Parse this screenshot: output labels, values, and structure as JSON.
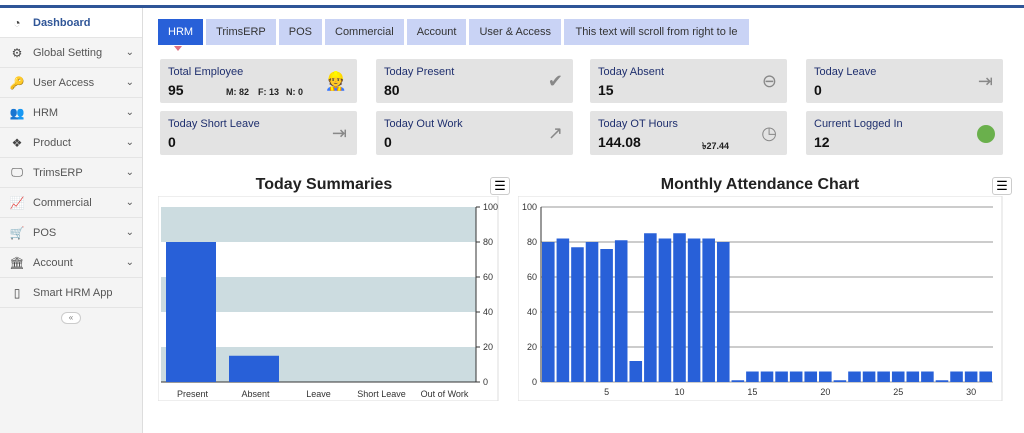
{
  "sidebar": {
    "items": [
      {
        "label": "Dashboard",
        "icon": "dashboard-icon",
        "active": true
      },
      {
        "label": "Global Setting",
        "icon": "gear-icon"
      },
      {
        "label": "User Access",
        "icon": "key-icon"
      },
      {
        "label": "HRM",
        "icon": "users-icon"
      },
      {
        "label": "Product",
        "icon": "boxes-icon"
      },
      {
        "label": "TrimsERP",
        "icon": "monitor-icon"
      },
      {
        "label": "Commercial",
        "icon": "chart-icon"
      },
      {
        "label": "POS",
        "icon": "cart-icon"
      },
      {
        "label": "Account",
        "icon": "bank-icon"
      },
      {
        "label": "Smart HRM App",
        "icon": "phone-icon"
      }
    ],
    "collapse": "«"
  },
  "tabs": [
    "HRM",
    "TrimsERP",
    "POS",
    "Commercial",
    "Account",
    "User & Access"
  ],
  "marquee": "This text will scroll from right to le",
  "cards": [
    {
      "label": "Total Employee",
      "value": "95",
      "m": "M: 82",
      "f": "F: 13",
      "n": "N: 0",
      "icon": "worker-icon"
    },
    {
      "label": "Today Present",
      "value": "80",
      "icon": "double-check-icon"
    },
    {
      "label": "Today Absent",
      "value": "15",
      "icon": "minus-circle-icon"
    },
    {
      "label": "Today Leave",
      "value": "0",
      "icon": "sign-out-icon"
    },
    {
      "label": "Today Short Leave",
      "value": "0",
      "icon": "sign-out-icon"
    },
    {
      "label": "Today Out Work",
      "value": "0",
      "icon": "external-link-icon"
    },
    {
      "label": "Today OT Hours",
      "value": "144.08",
      "amount": "৳27.44",
      "icon": "clock-icon"
    },
    {
      "label": "Current Logged In",
      "value": "12",
      "icon": "online-dot-icon",
      "status_color": "#6ab04c"
    }
  ],
  "chart_data": [
    {
      "type": "bar",
      "title": "Today Summaries",
      "categories": [
        "Present",
        "Absent",
        "Leave",
        "Short Leave",
        "Out of Work"
      ],
      "values": [
        80,
        15,
        0,
        0,
        0
      ],
      "ylim": [
        0,
        100
      ],
      "yticks": [
        0,
        20,
        40,
        60,
        80,
        100
      ],
      "y_axis_side": "right",
      "color": "#2860d8"
    },
    {
      "type": "bar",
      "title": "Monthly Attendance Chart",
      "x": [
        1,
        2,
        3,
        4,
        5,
        6,
        7,
        8,
        9,
        10,
        11,
        12,
        13,
        14,
        15,
        16,
        17,
        18,
        19,
        20,
        21,
        22,
        23,
        24,
        25,
        26,
        27,
        28,
        29,
        30,
        31
      ],
      "values": [
        80,
        82,
        77,
        80,
        76,
        81,
        12,
        85,
        82,
        85,
        82,
        82,
        80,
        1,
        6,
        6,
        6,
        6,
        6,
        6,
        1,
        6,
        6,
        6,
        6,
        6,
        6,
        1,
        6,
        6,
        6
      ],
      "ylim": [
        0,
        100
      ],
      "yticks": [
        0,
        20,
        40,
        60,
        80,
        100
      ],
      "xticks": [
        5,
        10,
        15,
        20,
        25,
        30
      ],
      "grid": true,
      "color": "#2860d8"
    }
  ],
  "menu_icon": "☰"
}
